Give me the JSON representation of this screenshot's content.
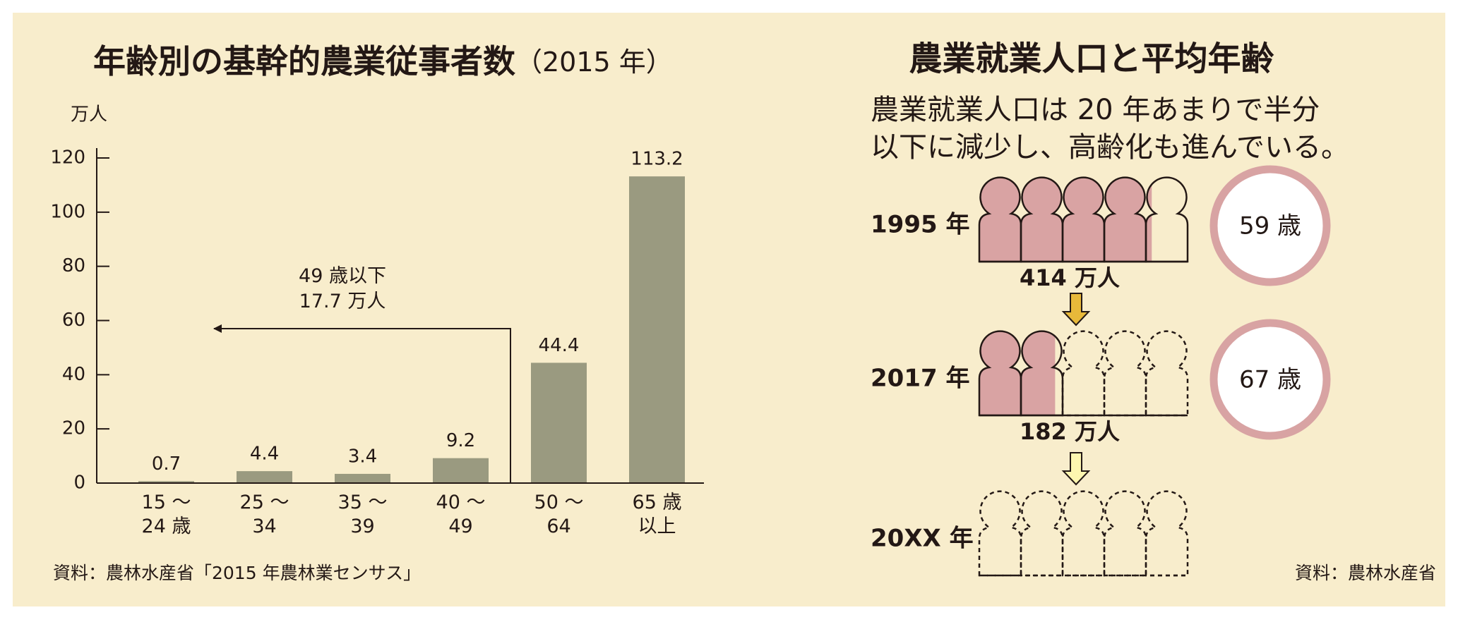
{
  "chart_data": {
    "type": "bar",
    "title": "年齢別の基幹的農業従事者数",
    "subtitle": "（2015 年）",
    "y_label": "万人",
    "categories": [
      "15 〜\n24 歳",
      "25 〜\n34",
      "35 〜\n39",
      "40 〜\n49",
      "50 〜\n64",
      "65 歳\n以上"
    ],
    "values": [
      0.7,
      4.4,
      3.4,
      9.2,
      44.4,
      113.2
    ],
    "color": "#9a9a80",
    "ylim": [
      0,
      120
    ],
    "yticks": [
      0,
      20,
      40,
      60,
      80,
      100,
      120
    ],
    "annotation": "49 歳以下\n17.7 万人",
    "source": "資料：農林水産省「2015 年農林業センサス」"
  },
  "infographic": {
    "title": "農業就業人口と平均年齢",
    "description": [
      "農業就業人口は 20 年あまりで半分",
      "以下に減少し、高齢化も進んでいる。"
    ],
    "rows": [
      {
        "year": "1995 年",
        "population": {
          "value": 414,
          "label": "414 万人"
        },
        "average_age": "59 歳"
      },
      {
        "year": "2017 年",
        "population": {
          "value": 182,
          "label": "182 万人"
        },
        "average_age": "67 歳"
      },
      {
        "year": "20XX 年"
      }
    ],
    "source": "資料：農林水産省"
  }
}
